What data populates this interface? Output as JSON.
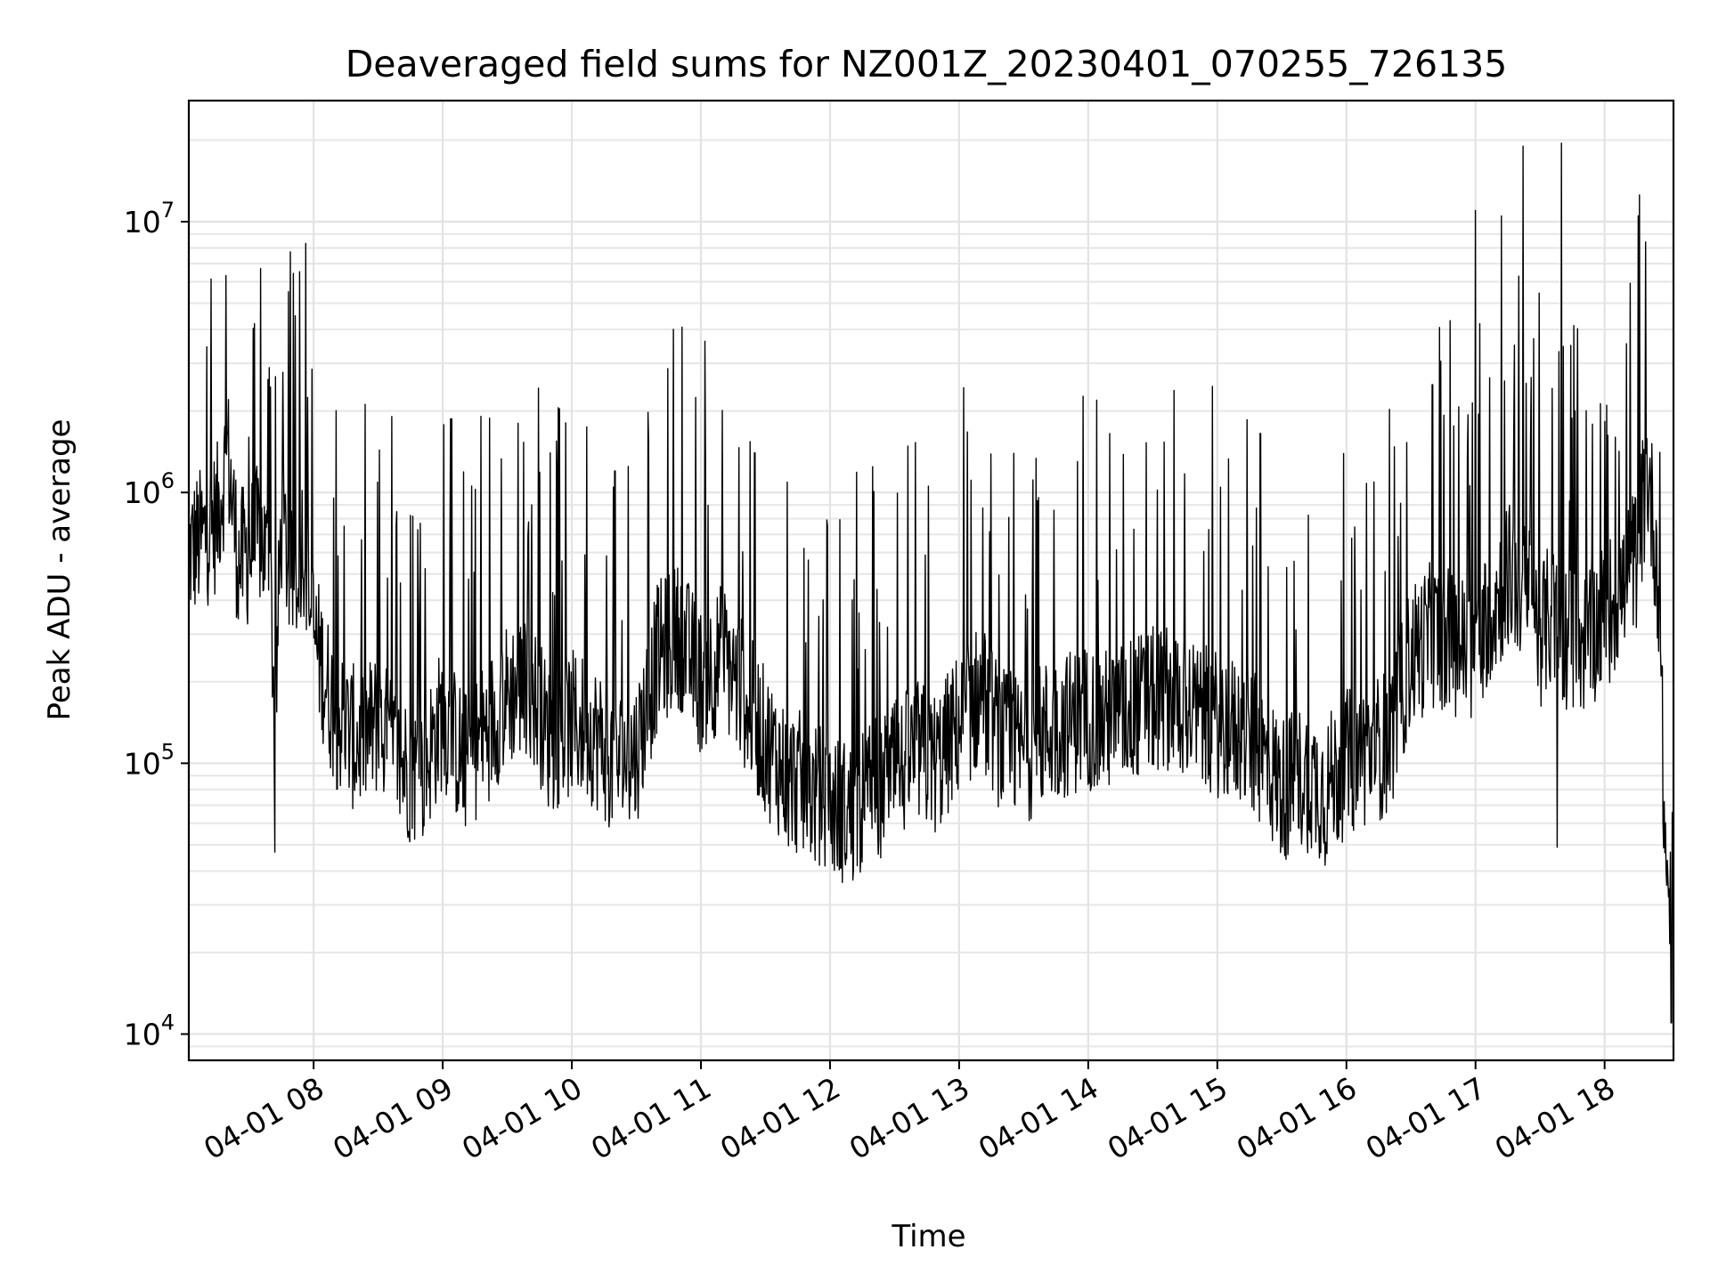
{
  "chart_data": {
    "type": "line",
    "title": "Deaveraged field sums for NZ001Z_20230401_070255_726135",
    "xlabel": "Time",
    "ylabel": "Peak ADU - average",
    "yscale": "log",
    "xlim": [
      "2023-04-01 07:02",
      "2023-04-01 18:32"
    ],
    "ylim": [
      8000,
      28000000
    ],
    "grid": "on",
    "line_color": "#000000",
    "x_ticks": [
      {
        "value": "2023-04-01 08:00",
        "label": "04-01 08"
      },
      {
        "value": "2023-04-01 09:00",
        "label": "04-01 09"
      },
      {
        "value": "2023-04-01 10:00",
        "label": "04-01 10"
      },
      {
        "value": "2023-04-01 11:00",
        "label": "04-01 11"
      },
      {
        "value": "2023-04-01 12:00",
        "label": "04-01 12"
      },
      {
        "value": "2023-04-01 13:00",
        "label": "04-01 13"
      },
      {
        "value": "2023-04-01 14:00",
        "label": "04-01 14"
      },
      {
        "value": "2023-04-01 15:00",
        "label": "04-01 15"
      },
      {
        "value": "2023-04-01 16:00",
        "label": "04-01 16"
      },
      {
        "value": "2023-04-01 17:00",
        "label": "04-01 17"
      },
      {
        "value": "2023-04-01 18:00",
        "label": "04-01 18"
      }
    ],
    "y_ticks": [
      {
        "value": 10000,
        "base": "10",
        "exp": "4"
      },
      {
        "value": 100000,
        "base": "10",
        "exp": "5"
      },
      {
        "value": 1000000,
        "base": "10",
        "exp": "6"
      },
      {
        "value": 10000000,
        "base": "10",
        "exp": "7"
      }
    ],
    "series": [
      {
        "x": [
          "2023-04-01 07:02",
          "2023-04-01 07:10",
          "2023-04-01 07:15",
          "2023-04-01 07:20",
          "2023-04-01 07:25",
          "2023-04-01 07:30",
          "2023-04-01 07:35",
          "2023-04-01 07:40",
          "2023-04-01 07:42",
          "2023-04-01 07:45",
          "2023-04-01 07:50",
          "2023-04-01 07:55",
          "2023-04-01 08:00",
          "2023-04-01 08:10",
          "2023-04-01 08:20",
          "2023-04-01 08:30",
          "2023-04-01 08:40",
          "2023-04-01 08:50",
          "2023-04-01 09:00",
          "2023-04-01 09:10",
          "2023-04-01 09:20",
          "2023-04-01 09:30",
          "2023-04-01 09:40",
          "2023-04-01 09:50",
          "2023-04-01 10:00",
          "2023-04-01 10:10",
          "2023-04-01 10:20",
          "2023-04-01 10:30",
          "2023-04-01 10:40",
          "2023-04-01 10:50",
          "2023-04-01 11:00",
          "2023-04-01 11:10",
          "2023-04-01 11:20",
          "2023-04-01 11:30",
          "2023-04-01 11:40",
          "2023-04-01 11:50",
          "2023-04-01 12:00",
          "2023-04-01 12:10",
          "2023-04-01 12:20",
          "2023-04-01 12:30",
          "2023-04-01 12:40",
          "2023-04-01 12:50",
          "2023-04-01 13:00",
          "2023-04-01 13:10",
          "2023-04-01 13:20",
          "2023-04-01 13:30",
          "2023-04-01 13:40",
          "2023-04-01 13:50",
          "2023-04-01 14:00",
          "2023-04-01 14:10",
          "2023-04-01 14:20",
          "2023-04-01 14:30",
          "2023-04-01 14:40",
          "2023-04-01 14:50",
          "2023-04-01 15:00",
          "2023-04-01 15:10",
          "2023-04-01 15:20",
          "2023-04-01 15:30",
          "2023-04-01 15:40",
          "2023-04-01 15:50",
          "2023-04-01 16:00",
          "2023-04-01 16:10",
          "2023-04-01 16:20",
          "2023-04-01 16:30",
          "2023-04-01 16:40",
          "2023-04-01 16:50",
          "2023-04-01 17:00",
          "2023-04-01 17:05",
          "2023-04-01 17:10",
          "2023-04-01 17:15",
          "2023-04-01 17:20",
          "2023-04-01 17:25",
          "2023-04-01 17:30",
          "2023-04-01 17:35",
          "2023-04-01 17:40",
          "2023-04-01 17:50",
          "2023-04-01 18:00",
          "2023-04-01 18:05",
          "2023-04-01 18:10",
          "2023-04-01 18:15",
          "2023-04-01 18:20",
          "2023-04-01 18:25",
          "2023-04-01 18:28",
          "2023-04-01 18:30",
          "2023-04-01 18:32"
        ],
        "y": [
          600000,
          700000,
          800000,
          1400000,
          550000,
          600000,
          700000,
          500000,
          130000,
          800000,
          450000,
          700000,
          300000,
          150000,
          120000,
          140000,
          100000,
          90000,
          150000,
          100000,
          130000,
          180000,
          200000,
          120000,
          140000,
          130000,
          100000,
          110000,
          250000,
          300000,
          200000,
          250000,
          180000,
          120000,
          90000,
          80000,
          70000,
          65000,
          80000,
          90000,
          110000,
          100000,
          140000,
          180000,
          120000,
          110000,
          130000,
          140000,
          150000,
          140000,
          160000,
          170000,
          180000,
          150000,
          140000,
          130000,
          110000,
          80000,
          90000,
          80000,
          100000,
          110000,
          120000,
          250000,
          300000,
          280000,
          250000,
          350000,
          400000,
          500000,
          450000,
          400000,
          300000,
          350000,
          300000,
          280000,
          350000,
          400000,
          450000,
          600000,
          1200000,
          500000,
          50000,
          30000,
          40000
        ],
        "peaks": [
          {
            "x": "2023-04-01 07:20",
            "y": 1650000
          },
          {
            "x": "2023-04-01 07:30",
            "y": 1600000
          },
          {
            "x": "2023-04-01 09:35",
            "y": 1800000
          },
          {
            "x": "2023-04-01 09:50",
            "y": 1400000
          },
          {
            "x": "2023-04-01 10:20",
            "y": 1200000
          },
          {
            "x": "2023-04-01 11:25",
            "y": 1400000
          },
          {
            "x": "2023-04-01 13:55",
            "y": 1300000
          },
          {
            "x": "2023-04-01 14:10",
            "y": 1650000
          },
          {
            "x": "2023-04-01 15:20",
            "y": 1650000
          },
          {
            "x": "2023-04-01 16:40",
            "y": 2500000
          },
          {
            "x": "2023-04-01 17:00",
            "y": 11000000
          },
          {
            "x": "2023-04-01 17:02",
            "y": 4200000
          },
          {
            "x": "2023-04-01 17:12",
            "y": 10500000
          },
          {
            "x": "2023-04-01 17:18",
            "y": 3500000
          },
          {
            "x": "2023-04-01 17:22",
            "y": 19000000
          },
          {
            "x": "2023-04-01 17:27",
            "y": 3700000
          },
          {
            "x": "2023-04-01 17:40",
            "y": 19500000
          },
          {
            "x": "2023-04-01 18:01",
            "y": 2100000
          },
          {
            "x": "2023-04-01 18:05",
            "y": 1600000
          }
        ],
        "troughs": [
          {
            "x": "2023-04-01 07:42",
            "y": 47000
          },
          {
            "x": "2023-04-01 11:55",
            "y": 42000
          },
          {
            "x": "2023-04-01 12:05",
            "y": 41000
          },
          {
            "x": "2023-04-01 15:50",
            "y": 42000
          },
          {
            "x": "2023-04-01 17:38",
            "y": 49000
          },
          {
            "x": "2023-04-01 18:31",
            "y": 11000
          }
        ]
      }
    ]
  }
}
